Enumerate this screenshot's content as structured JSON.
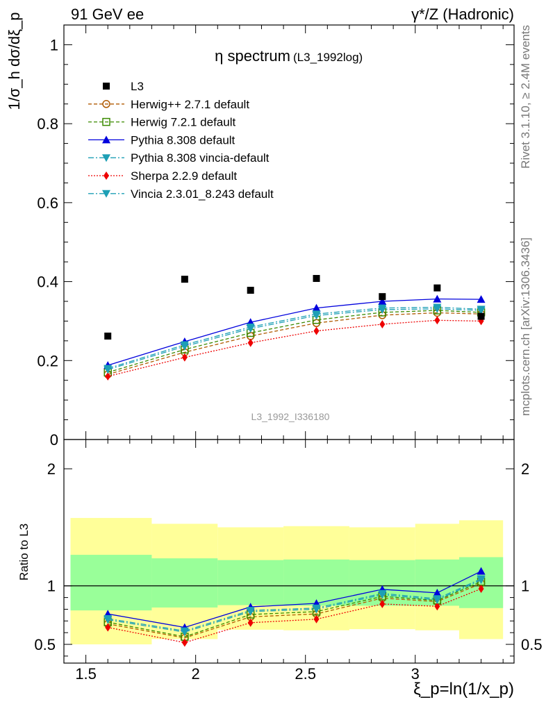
{
  "header": {
    "left": "91 GeV ee",
    "right": "γ*/Z (Hadronic)"
  },
  "side_labels": {
    "rivet": "Rivet 3.1.10, ≥ 2.4M events",
    "mcplots": "mcplots.cern.ch [arXiv:1306.3436]"
  },
  "chart_data": [
    {
      "type": "scatter",
      "title": "η spectrum",
      "title_suffix": "(L3_1992log)",
      "watermark": "L3_1992_I336180",
      "ylabel": "1/σ_h dσ/dξ_p",
      "xlabel": "ξ_p=ln(1/x_p)",
      "xlim": [
        1.4,
        3.45
      ],
      "ylim": [
        0,
        1.05
      ],
      "y_ticks": [
        0,
        0.2,
        0.4,
        0.6,
        0.8,
        1
      ],
      "y_tick_labels": [
        "0",
        "0.2",
        "0.4",
        "0.6",
        "0.8",
        "1"
      ],
      "legend_position": "top-left",
      "x": [
        1.6,
        1.95,
        2.25,
        2.55,
        2.85,
        3.1,
        3.3
      ],
      "series": [
        {
          "name": "L3",
          "color": "#000000",
          "marker": "filled-square",
          "line": "none",
          "values": [
            0.262,
            0.406,
            0.378,
            0.408,
            0.362,
            0.384,
            0.312
          ]
        },
        {
          "name": "Herwig++ 2.7.1 default",
          "color": "#b05a00",
          "marker": "open-circle",
          "line": "dashed",
          "values": [
            0.165,
            0.221,
            0.262,
            0.295,
            0.315,
            0.321,
            0.318
          ]
        },
        {
          "name": "Herwig 7.2.1 default",
          "color": "#3a8a00",
          "marker": "open-square",
          "line": "dashed",
          "values": [
            0.17,
            0.228,
            0.27,
            0.303,
            0.322,
            0.327,
            0.322
          ]
        },
        {
          "name": "Pythia 8.308 default",
          "color": "#0000dd",
          "marker": "filled-triangle-up",
          "line": "solid",
          "values": [
            0.188,
            0.248,
            0.297,
            0.333,
            0.35,
            0.356,
            0.355
          ]
        },
        {
          "name": "Pythia 8.308 vincia-default",
          "color": "#1d9fb5",
          "marker": "filled-triangle-down",
          "line": "dashdot",
          "values": [
            0.18,
            0.24,
            0.285,
            0.318,
            0.333,
            0.335,
            0.33
          ]
        },
        {
          "name": "Sherpa 2.2.9 default",
          "color": "#ee0000",
          "marker": "filled-diamond",
          "line": "dotted",
          "values": [
            0.16,
            0.208,
            0.245,
            0.275,
            0.292,
            0.302,
            0.3
          ]
        },
        {
          "name": "Vincia 2.3.01_8.243 default",
          "color": "#1d9fb5",
          "marker": "filled-triangle-down",
          "line": "dashdot",
          "values": [
            0.177,
            0.236,
            0.281,
            0.314,
            0.329,
            0.331,
            0.327
          ]
        }
      ]
    },
    {
      "type": "line",
      "ylabel": "Ratio to L3",
      "xlabel": "ξ_p=ln(1/x_p)",
      "xlim": [
        1.4,
        3.45
      ],
      "ylim": [
        0.34,
        2.25
      ],
      "reference_line": 1,
      "y_ticks": [
        0.5,
        1,
        2
      ],
      "y_tick_labels": [
        "0.5",
        "1",
        "2"
      ],
      "x_ticks": [
        1.5,
        2,
        2.5,
        3
      ],
      "x_tick_labels": [
        "1.5",
        "2",
        "2.5",
        "3"
      ],
      "bin_edges": [
        1.43,
        1.8,
        2.1,
        2.4,
        2.7,
        3.0,
        3.2,
        3.4
      ],
      "band_outer": {
        "color": "#ffff99",
        "lower": [
          0.5,
          0.545,
          0.625,
          0.62,
          0.63,
          0.62,
          0.545
        ],
        "upper": [
          1.58,
          1.53,
          1.5,
          1.51,
          1.5,
          1.53,
          1.56
        ]
      },
      "band_inner": {
        "color": "#99ff99",
        "lower": [
          0.79,
          0.815,
          0.835,
          0.83,
          0.83,
          0.83,
          0.81
        ],
        "upper": [
          1.265,
          1.235,
          1.22,
          1.225,
          1.22,
          1.225,
          1.245
        ]
      },
      "x": [
        1.6,
        1.95,
        2.25,
        2.55,
        2.85,
        3.1,
        3.3
      ],
      "series": [
        {
          "name": "Herwig++ 2.7.1 default",
          "color": "#b05a00",
          "marker": "open-circle",
          "line": "dashed",
          "values": [
            0.675,
            0.555,
            0.735,
            0.76,
            0.895,
            0.865,
            1.02
          ]
        },
        {
          "name": "Herwig 7.2.1 default",
          "color": "#3a8a00",
          "marker": "open-square",
          "line": "dashed",
          "values": [
            0.69,
            0.565,
            0.755,
            0.78,
            0.91,
            0.875,
            1.035
          ]
        },
        {
          "name": "Pythia 8.308 default",
          "color": "#0000dd",
          "marker": "filled-triangle-up",
          "line": "solid",
          "values": [
            0.76,
            0.645,
            0.82,
            0.85,
            0.97,
            0.94,
            1.125
          ]
        },
        {
          "name": "Pythia 8.308 vincia-default",
          "color": "#1d9fb5",
          "marker": "filled-triangle-down",
          "line": "dashdot",
          "values": [
            0.72,
            0.615,
            0.79,
            0.81,
            0.935,
            0.89,
            1.06
          ]
        },
        {
          "name": "Sherpa 2.2.9 default",
          "color": "#ee0000",
          "marker": "filled-diamond",
          "line": "dotted",
          "values": [
            0.645,
            0.515,
            0.685,
            0.715,
            0.845,
            0.825,
            0.975
          ]
        },
        {
          "name": "Vincia 2.3.01_8.243 default",
          "color": "#1d9fb5",
          "marker": "filled-triangle-down",
          "line": "dashdot",
          "values": [
            0.71,
            0.605,
            0.78,
            0.8,
            0.925,
            0.88,
            1.05
          ]
        }
      ]
    }
  ]
}
